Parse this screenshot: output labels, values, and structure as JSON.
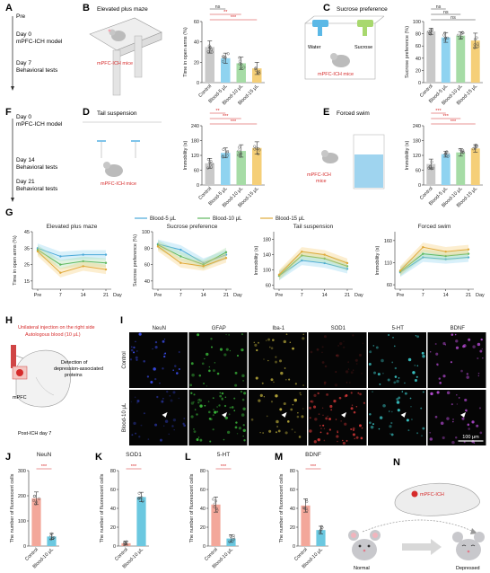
{
  "colors": {
    "control": "#c9c9c9",
    "b5": "#8fd3f0",
    "b10": "#a6dca6",
    "b15": "#f5cf78",
    "sig": "#d62b2b",
    "controlPink": "#f3a79a",
    "blood10Cyan": "#6bc8e0"
  },
  "panels": {
    "A": "A",
    "B": "B",
    "C": "C",
    "D": "D",
    "E": "E",
    "F": "F",
    "G": "G",
    "H": "H",
    "I": "I",
    "J": "J",
    "K": "K",
    "L": "L",
    "M": "M",
    "N": "N"
  },
  "timelineA": {
    "pre": "Pre",
    "day0": "Day 0",
    "day0b": "mPFC-ICH model",
    "day7": "Day 7",
    "day7b": "Behavioral tests"
  },
  "timelineF": {
    "day0": "Day 0",
    "day0b": "mPFC-ICH model",
    "day14": "Day 14",
    "day14b": "Behavioral tests",
    "day21": "Day 21",
    "day21b": "Behavioral tests"
  },
  "schematics": {
    "epm": "Elevated plus maze",
    "epmMice": "mPFC-ICH mice",
    "sucrose": "Sucrose preference",
    "water": "Water",
    "sucroseBottle": "Sucrose",
    "sucroseMice": "mPFC-ICH mice",
    "tail": "Tail suspension",
    "tailMice": "mPFC-ICH mice",
    "swim": "Forced swim",
    "swimMice1": "mPFC-ICH",
    "swimMice2": "mice"
  },
  "groups4": [
    "Control",
    "Blood-5 μL",
    "Blood-10 μL",
    "Blood-15 μL"
  ],
  "groups2": [
    "Control",
    "Blood-10 μL"
  ],
  "sig": {
    "ns": "ns",
    "s2": "**",
    "s3": "***"
  },
  "chart_data": [
    {
      "type": "bar",
      "panel": "B",
      "ylabel": "Time in open arms (%)",
      "ylim": [
        0,
        60
      ],
      "yticks": [
        0,
        20,
        40,
        60
      ],
      "categories": [
        "Control",
        "Blood-5 μL",
        "Blood-10 μL",
        "Blood-15 μL"
      ],
      "values": [
        35,
        24,
        19,
        14
      ],
      "errors": [
        6,
        5,
        6,
        6
      ],
      "brackets": [
        {
          "from": 0,
          "to": 1,
          "label": "ns"
        },
        {
          "from": 0,
          "to": 2,
          "label": "**"
        },
        {
          "from": 0,
          "to": 3,
          "label": "***"
        }
      ]
    },
    {
      "type": "bar",
      "panel": "C",
      "ylabel": "Sucrose preference (%)",
      "ylim": [
        0,
        100
      ],
      "yticks": [
        0,
        20,
        40,
        60,
        80,
        100
      ],
      "categories": [
        "Control",
        "Blood-5 μL",
        "Blood-10 μL",
        "Blood-15 μL"
      ],
      "values": [
        84,
        74,
        77,
        69
      ],
      "errors": [
        5,
        8,
        6,
        12
      ],
      "brackets": [
        {
          "from": 0,
          "to": 1,
          "label": "ns"
        },
        {
          "from": 0,
          "to": 2,
          "label": "ns"
        },
        {
          "from": 0,
          "to": 3,
          "label": "ns"
        }
      ]
    },
    {
      "type": "bar",
      "panel": "D",
      "ylabel": "Immobility (s)",
      "ylim": [
        0,
        240
      ],
      "yticks": [
        0,
        60,
        120,
        180,
        240
      ],
      "categories": [
        "Control",
        "Blood-5 μL",
        "Blood-10 μL",
        "Blood-15 μL"
      ],
      "values": [
        88,
        130,
        138,
        150
      ],
      "errors": [
        20,
        20,
        25,
        25
      ],
      "brackets": [
        {
          "from": 0,
          "to": 1,
          "label": "**"
        },
        {
          "from": 0,
          "to": 2,
          "label": "***"
        },
        {
          "from": 0,
          "to": 3,
          "label": "***"
        }
      ]
    },
    {
      "type": "bar",
      "panel": "E",
      "ylabel": "Immobility (s)",
      "ylim": [
        0,
        240
      ],
      "yticks": [
        0,
        60,
        120,
        180,
        240
      ],
      "categories": [
        "Control",
        "Blood-5 μL",
        "Blood-10 μL",
        "Blood-15 μL"
      ],
      "values": [
        85,
        125,
        132,
        148
      ],
      "errors": [
        20,
        12,
        15,
        15
      ],
      "brackets": [
        {
          "from": 0,
          "to": 1,
          "label": "***"
        },
        {
          "from": 0,
          "to": 2,
          "label": "***"
        },
        {
          "from": 0,
          "to": 3,
          "label": "***"
        }
      ]
    },
    {
      "type": "line",
      "panel": "G",
      "legend": [
        "Blood-5 μL",
        "Blood-10 μL",
        "Blood-15 μL"
      ],
      "subplots": [
        {
          "title": "Elevated plus maze",
          "ylabel": "Time in open arms (%)",
          "ylim": [
            10,
            45
          ],
          "yticks": [
            15,
            25,
            35,
            45
          ],
          "x": [
            "Pre",
            "7",
            "14",
            "21"
          ],
          "xunit": "Day",
          "series": [
            {
              "name": "Blood-5 μL",
              "values": [
                35,
                30,
                31,
                31
              ]
            },
            {
              "name": "Blood-10 μL",
              "values": [
                34,
                25,
                27,
                26
              ]
            },
            {
              "name": "Blood-15 μL",
              "values": [
                33,
                20,
                24,
                22
              ]
            }
          ]
        },
        {
          "title": "Sucrose preference",
          "ylabel": "Sucrose preference (%)",
          "ylim": [
            30,
            100
          ],
          "yticks": [
            40,
            60,
            80,
            100
          ],
          "x": [
            "Pre",
            "7",
            "14",
            "21"
          ],
          "xunit": "Day",
          "series": [
            {
              "name": "Blood-5 μL",
              "values": [
                85,
                78,
                62,
                72
              ]
            },
            {
              "name": "Blood-10 μL",
              "values": [
                84,
                70,
                60,
                75
              ]
            },
            {
              "name": "Blood-15 μL",
              "values": [
                82,
                62,
                58,
                68
              ]
            }
          ]
        },
        {
          "title": "Tail suspension",
          "ylabel": "Immobility (s)",
          "ylim": [
            50,
            200
          ],
          "yticks": [
            60,
            100,
            140,
            180
          ],
          "x": [
            "Pre",
            "7",
            "14",
            "21"
          ],
          "xunit": "Day",
          "series": [
            {
              "name": "Blood-5 μL",
              "values": [
                85,
                125,
                118,
                103
              ]
            },
            {
              "name": "Blood-10 μL",
              "values": [
                85,
                138,
                130,
                110
              ]
            },
            {
              "name": "Blood-15 μL",
              "values": [
                88,
                148,
                140,
                118
              ]
            }
          ]
        },
        {
          "title": "Forced swim",
          "ylabel": "Immobility (s)",
          "ylim": [
            50,
            180
          ],
          "yticks": [
            60,
            110,
            160
          ],
          "x": [
            "Pre",
            "7",
            "14",
            "21"
          ],
          "xunit": "Day",
          "series": [
            {
              "name": "Blood-5 μL",
              "values": [
                88,
                122,
                118,
                122
              ]
            },
            {
              "name": "Blood-10 μL",
              "values": [
                90,
                130,
                125,
                130
              ]
            },
            {
              "name": "Blood-15 μL",
              "values": [
                92,
                145,
                135,
                140
              ]
            }
          ]
        }
      ]
    },
    {
      "type": "bar",
      "panel": "J",
      "title": "NeuN",
      "ylabel": "The number of fluorescent cells",
      "ylim": [
        0,
        300
      ],
      "yticks": [
        0,
        100,
        200,
        300
      ],
      "categories": [
        "Control",
        "Blood-10 μL"
      ],
      "values": [
        190,
        38
      ],
      "errors": [
        25,
        12
      ],
      "brackets": [
        {
          "from": 0,
          "to": 1,
          "label": "***"
        }
      ]
    },
    {
      "type": "bar",
      "panel": "K",
      "title": "SOD1",
      "ylabel": "The number of fluorescent cells",
      "ylim": [
        0,
        80
      ],
      "yticks": [
        0,
        20,
        40,
        60,
        80
      ],
      "categories": [
        "Control",
        "Blood-10 μL"
      ],
      "values": [
        3,
        52
      ],
      "errors": [
        2,
        5
      ],
      "brackets": [
        {
          "from": 0,
          "to": 1,
          "label": "***"
        }
      ]
    },
    {
      "type": "bar",
      "panel": "L",
      "title": "5-HT",
      "ylabel": "The number of fluorescent cells",
      "ylim": [
        0,
        80
      ],
      "yticks": [
        0,
        20,
        40,
        60,
        80
      ],
      "categories": [
        "Control",
        "Blood-10 μL"
      ],
      "values": [
        44,
        8
      ],
      "errors": [
        8,
        4
      ],
      "brackets": [
        {
          "from": 0,
          "to": 1,
          "label": "***"
        }
      ]
    },
    {
      "type": "bar",
      "panel": "M",
      "title": "BDNF",
      "ylabel": "The number of fluorescent cells",
      "ylim": [
        0,
        80
      ],
      "yticks": [
        0,
        20,
        40,
        60,
        80
      ],
      "categories": [
        "Control",
        "Blood-10 μL"
      ],
      "values": [
        43,
        17
      ],
      "errors": [
        7,
        4
      ],
      "brackets": [
        {
          "from": 0,
          "to": 1,
          "label": "***"
        }
      ]
    }
  ],
  "panelH": {
    "line1": "Unilateral injection on the right side",
    "line2": "Autologous blood (10 μL)",
    "detect1": "Detection of",
    "detect2": "depression-associated",
    "detect3": "proteins",
    "mpfc": "mPFC",
    "post": "Post-ICH day 7"
  },
  "panelI": {
    "markers": [
      "NeuN",
      "GFAP",
      "Iba-1",
      "SOD1",
      "5-HT",
      "BDNF"
    ],
    "rows": [
      "Control",
      "Blood-10 μL"
    ],
    "scale": "100 μm"
  },
  "panelN": {
    "ich": "mPFC-ICH",
    "normal": "Normal",
    "depressed": "Depressed"
  }
}
